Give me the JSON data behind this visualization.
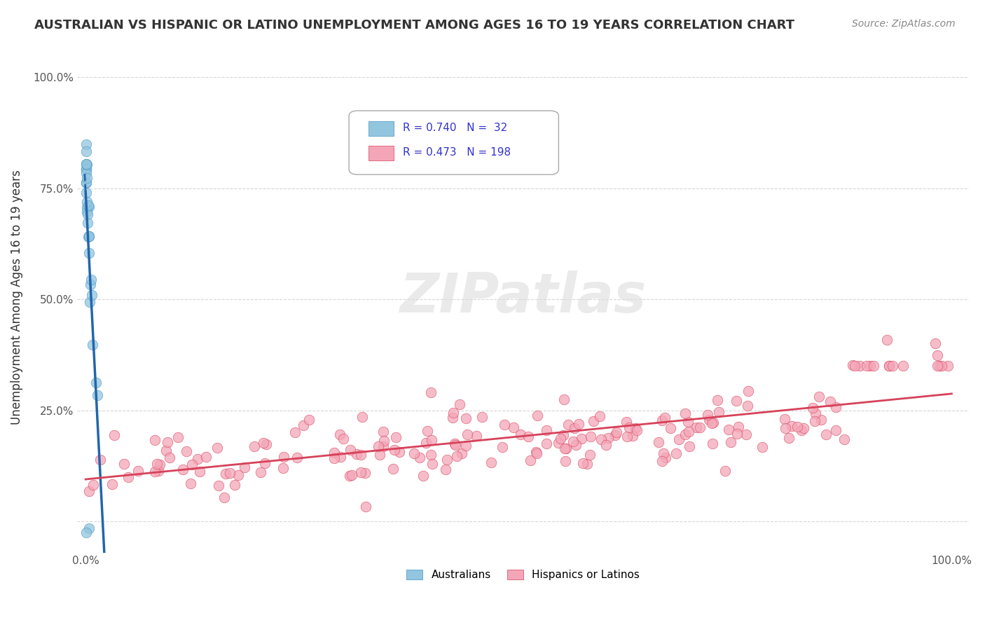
{
  "title": "AUSTRALIAN VS HISPANIC OR LATINO UNEMPLOYMENT AMONG AGES 16 TO 19 YEARS CORRELATION CHART",
  "source": "Source: ZipAtlas.com",
  "ylabel": "Unemployment Among Ages 16 to 19 years",
  "xlim": [
    0,
    1
  ],
  "ylim": [
    -0.07,
    1.08
  ],
  "yticks": [
    0,
    0.25,
    0.5,
    0.75,
    1.0
  ],
  "ytick_labels": [
    "",
    "25.0%",
    "50.0%",
    "75.0%",
    "100.0%"
  ],
  "legend_r1": "R = 0.740",
  "legend_n1": "N =  32",
  "legend_r2": "R = 0.473",
  "legend_n2": "N = 198",
  "blue_color": "#92c5de",
  "blue_edge_color": "#4393c3",
  "blue_line_color": "#2166ac",
  "pink_color": "#f4a6b8",
  "pink_edge_color": "#d6425a",
  "pink_line_color": "#d6425a",
  "legend_text_color": "#3333cc",
  "watermark_color": "#dddddd",
  "background_color": "#ffffff",
  "grid_color": "#cccccc"
}
